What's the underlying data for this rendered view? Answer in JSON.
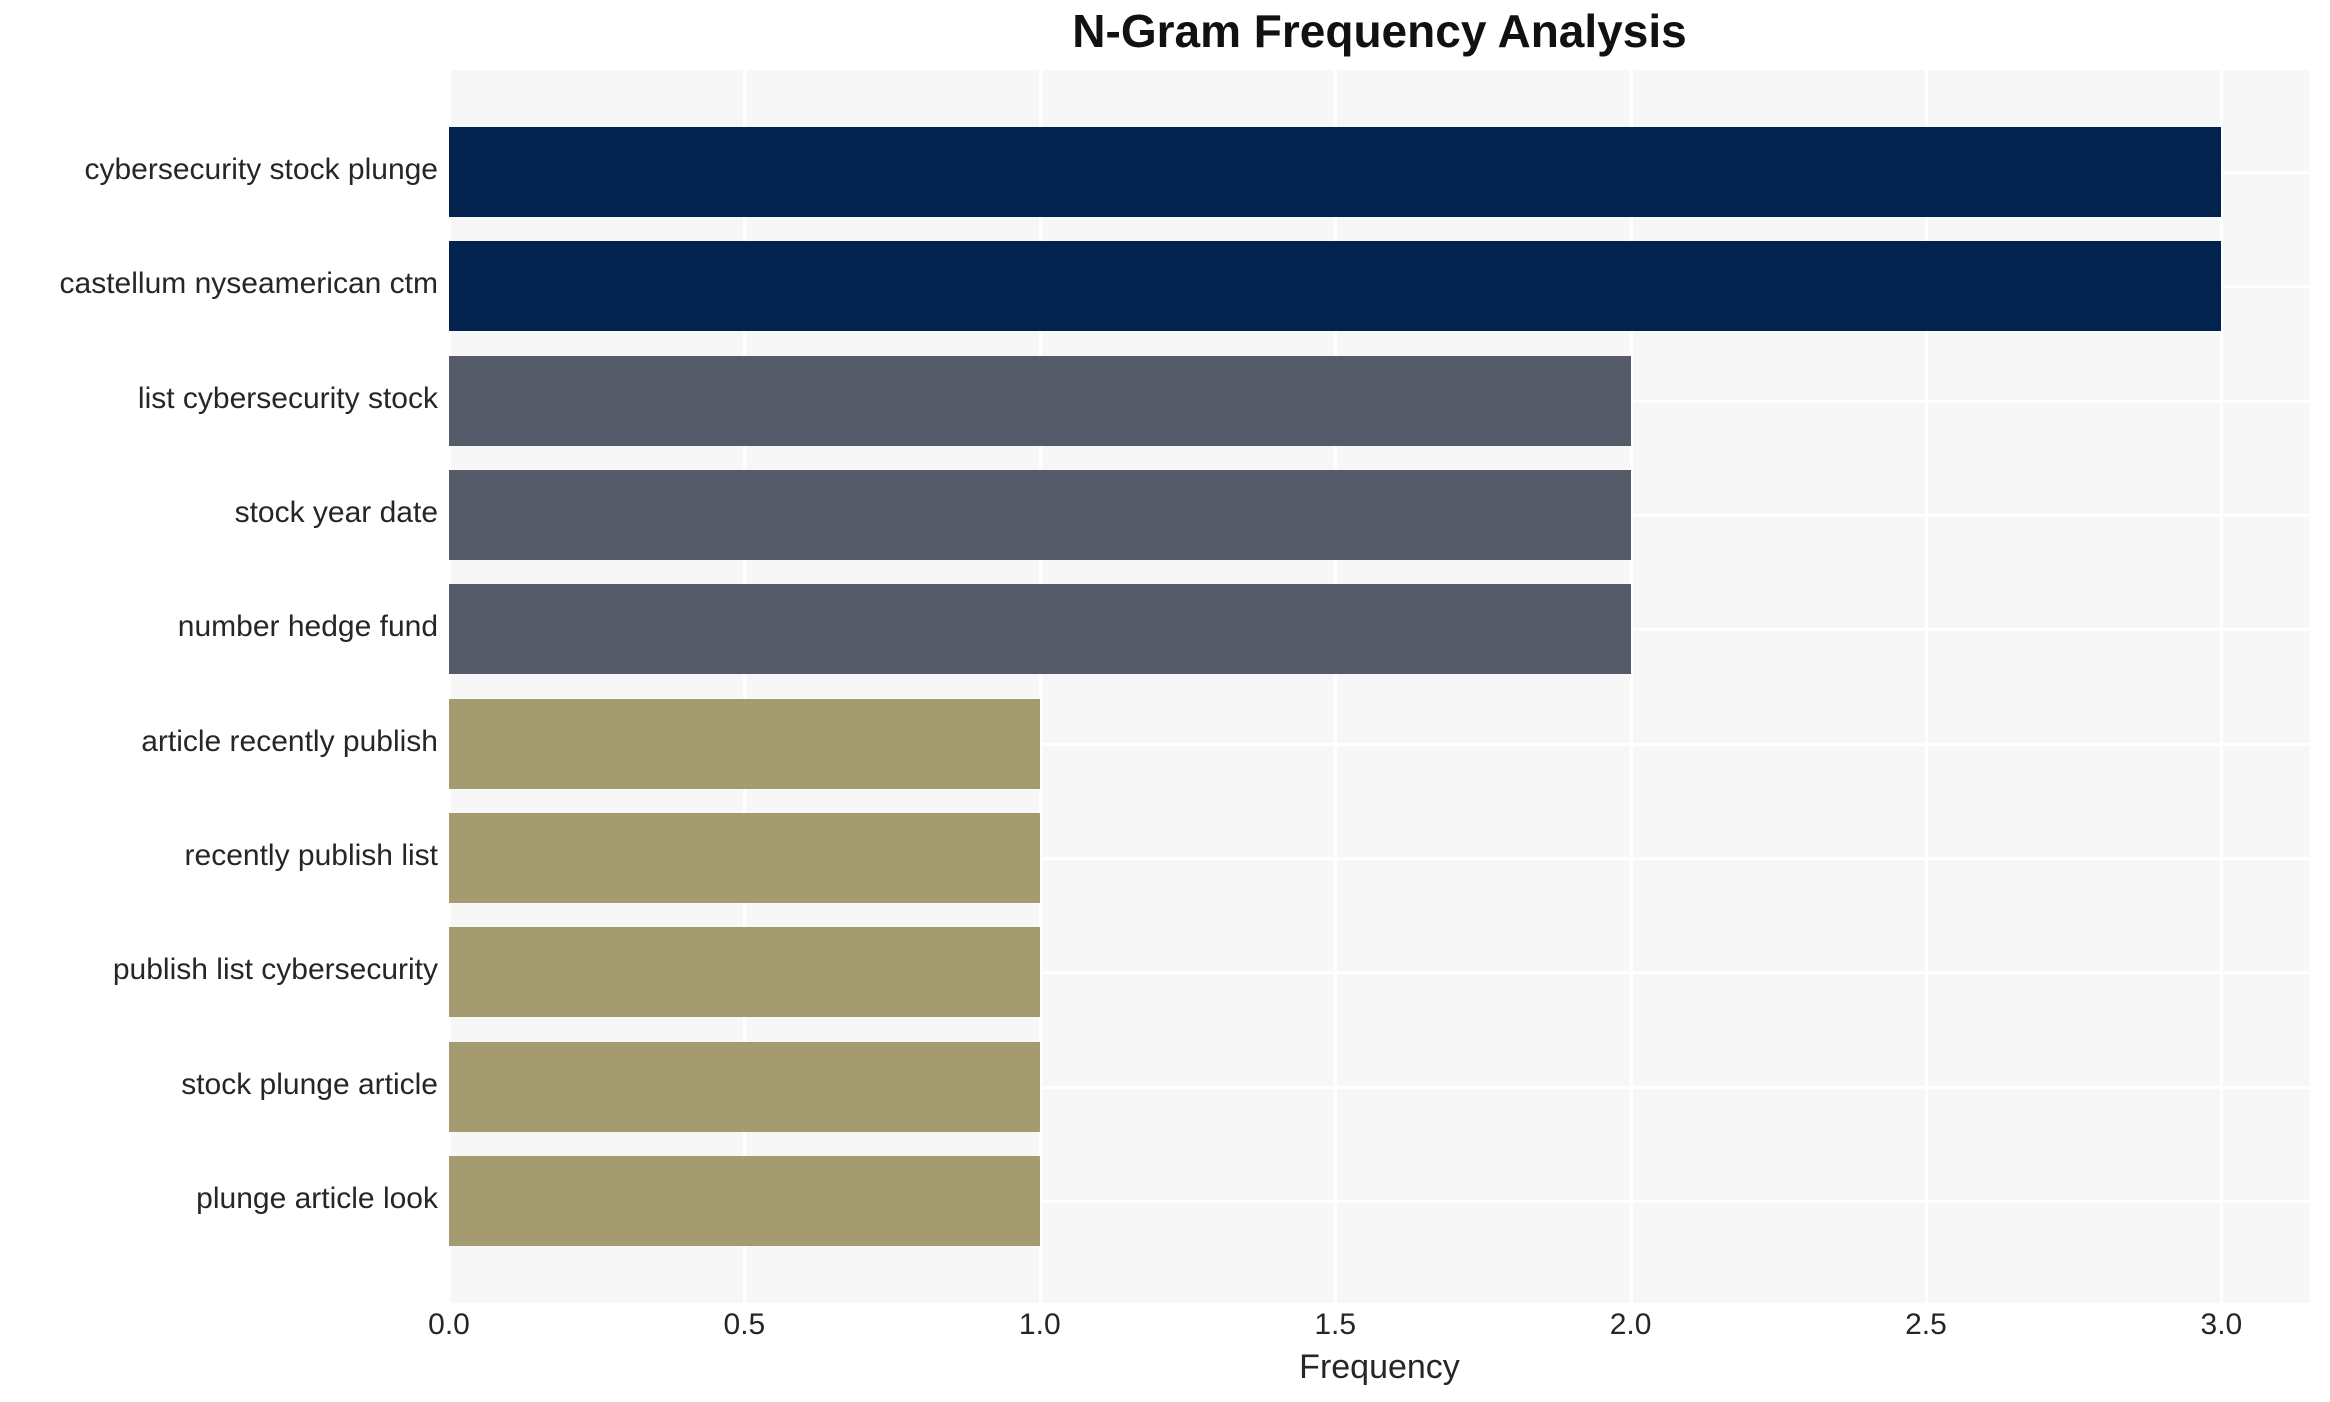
{
  "chart_data": {
    "type": "bar",
    "orientation": "horizontal",
    "title": "N-Gram Frequency Analysis",
    "xlabel": "Frequency",
    "ylabel": "",
    "categories": [
      "cybersecurity stock plunge",
      "castellum nyseamerican ctm",
      "list cybersecurity stock",
      "stock year date",
      "number hedge fund",
      "article recently publish",
      "recently publish list",
      "publish list cybersecurity",
      "stock plunge article",
      "plunge article look"
    ],
    "values": [
      3,
      3,
      2,
      2,
      2,
      1,
      1,
      1,
      1,
      1
    ],
    "bar_colors": [
      "#02234e",
      "#02234e",
      "#565b6a",
      "#565b6a",
      "#565b6a",
      "#a49b70",
      "#a49b70",
      "#a49b70",
      "#a49b70",
      "#a49b70"
    ],
    "xticks": [
      0.0,
      0.5,
      1.0,
      1.5,
      2.0,
      2.5,
      3.0
    ],
    "xtick_labels": [
      "0.0",
      "0.5",
      "1.0",
      "1.5",
      "2.0",
      "2.5",
      "3.0"
    ],
    "xlim": [
      0,
      3.15
    ],
    "grid": true,
    "legend_position": "none",
    "plot_bg_color": "#f7f7f7",
    "grid_color": "#ffffff",
    "text_color": "#262626",
    "title_color": "#111111"
  }
}
